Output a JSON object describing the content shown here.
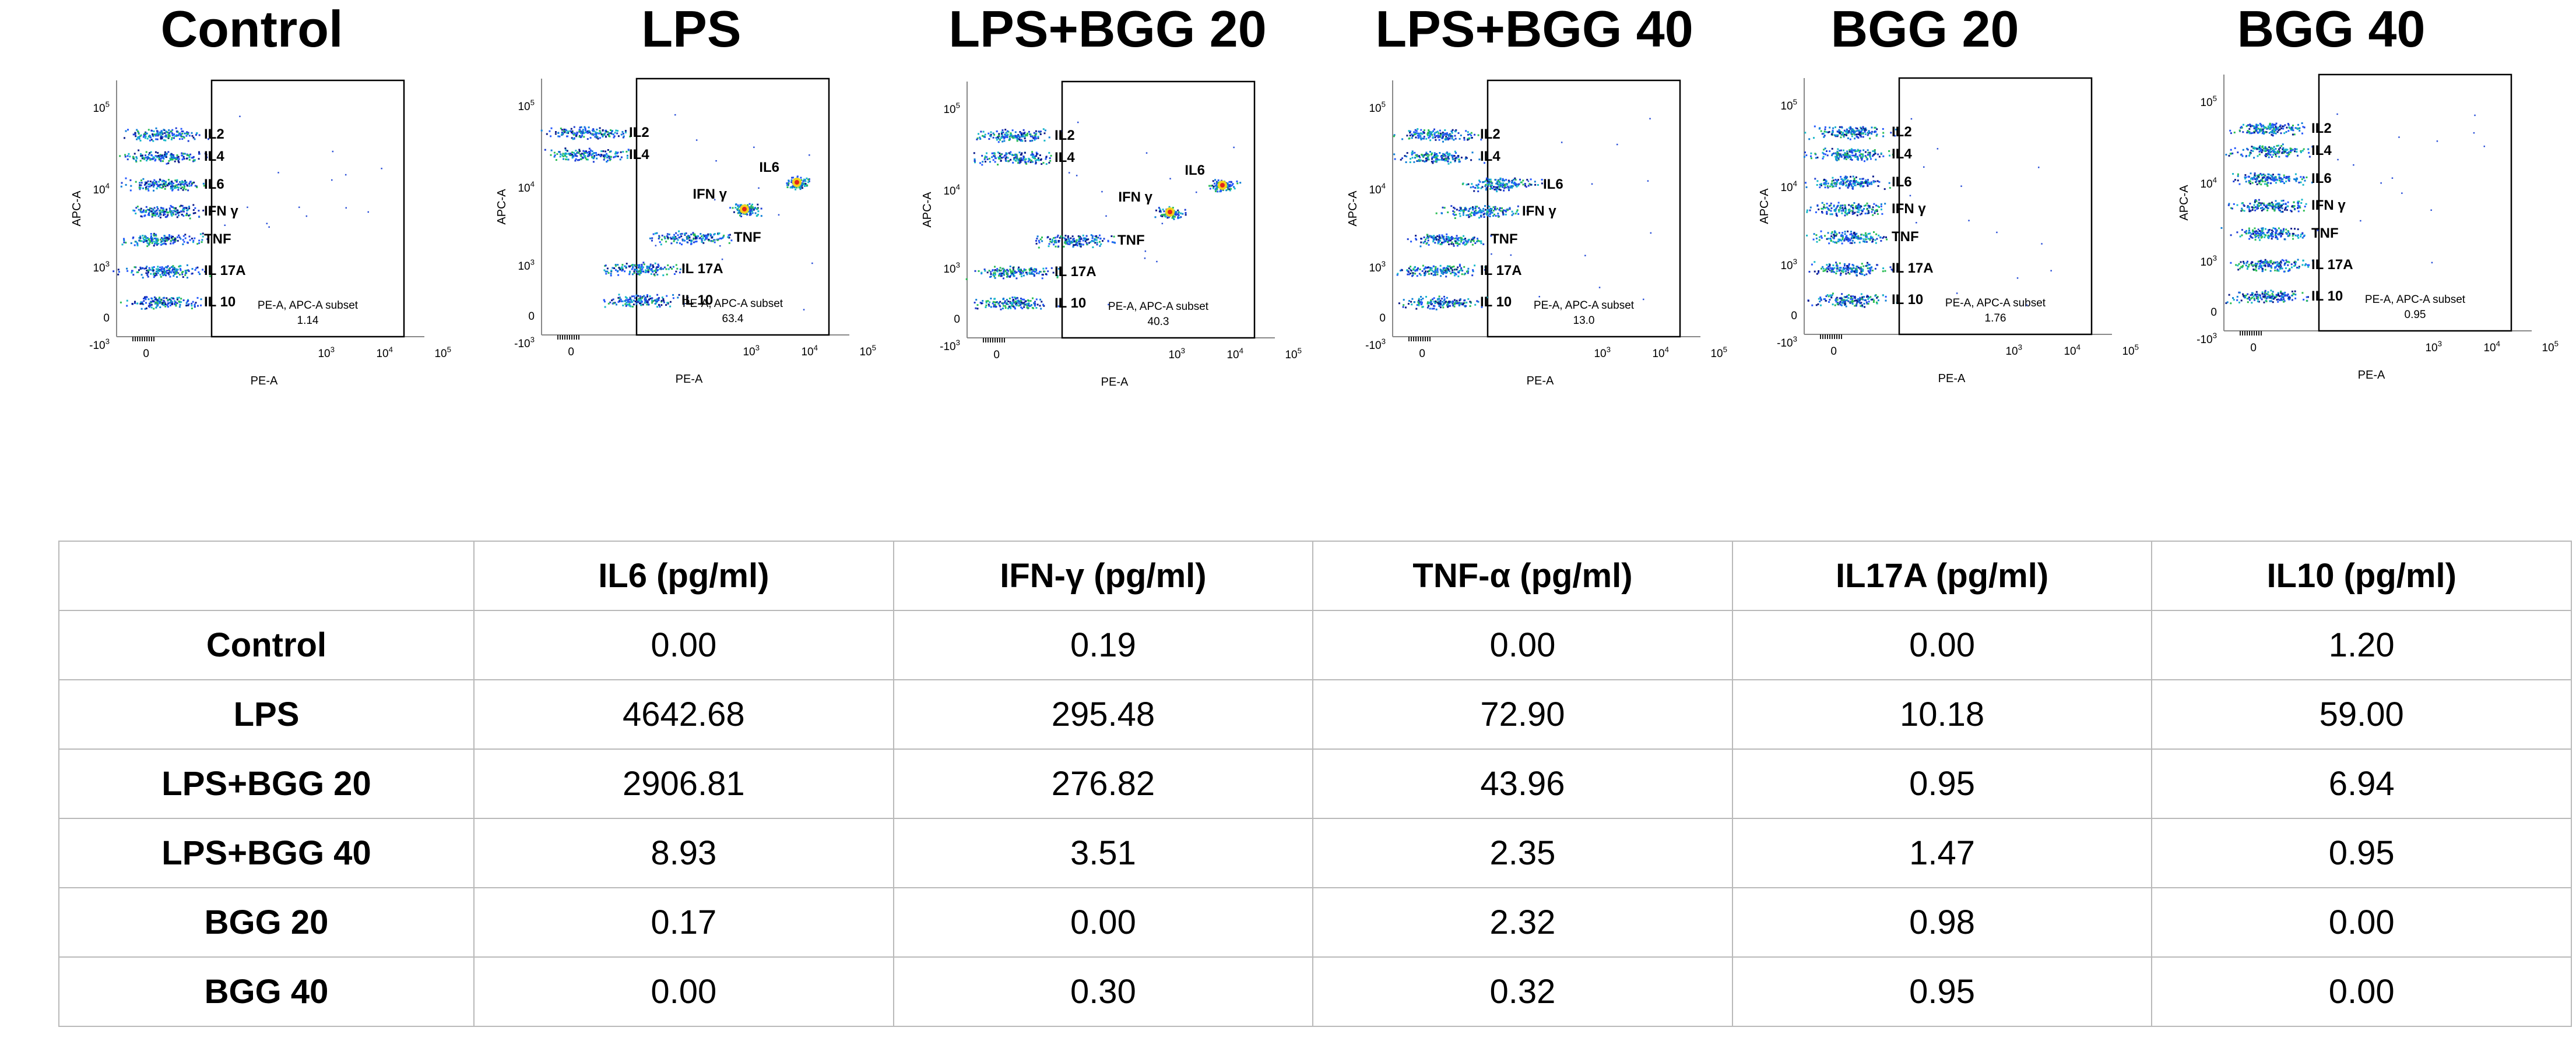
{
  "flow_panels": {
    "x_axis_label": "PE-A",
    "y_axis_label": "APC-A",
    "gate_caption": "PE-A, APC-A subset",
    "x_ticks": [
      "0",
      "10^3",
      "10^4",
      "10^5"
    ],
    "y_ticks": [
      "10^5",
      "10^4",
      "10^3",
      "0",
      "-10^3"
    ],
    "panels": [
      {
        "title": "Control",
        "gate_value": "1.14",
        "labels": [
          "IL2",
          "IL4",
          "IL6",
          "IFN γ",
          "TNF",
          "IL 17A",
          "IL 10"
        ],
        "shift": [
          0,
          0,
          0,
          0,
          0,
          0,
          0
        ]
      },
      {
        "title": "LPS",
        "gate_value": "63.4",
        "labels": [
          "IL2",
          "IL4",
          "IL6",
          "IFN γ",
          "TNF",
          "IL 17A",
          "IL 10"
        ],
        "shift": [
          0,
          0,
          1,
          0.75,
          0.5,
          0.25,
          0.25
        ]
      },
      {
        "title": "LPS+BGG 20",
        "gate_value": "40.3",
        "labels": [
          "IL2",
          "IL4",
          "IL6",
          "IFN γ",
          "TNF",
          "IL 17A",
          "IL 10"
        ],
        "shift": [
          0,
          0,
          1,
          0.75,
          0.3,
          0,
          0
        ]
      },
      {
        "title": "LPS+BGG 40",
        "gate_value": "13.0",
        "labels": [
          "IL2",
          "IL4",
          "IL6",
          "IFN γ",
          "TNF",
          "IL 17A",
          "IL 10"
        ],
        "shift": [
          0,
          0,
          0.3,
          0.2,
          0.05,
          0,
          0
        ]
      },
      {
        "title": "BGG 20",
        "gate_value": "1.76",
        "labels": [
          "IL2",
          "IL4",
          "IL6",
          "IFN γ",
          "TNF",
          "IL 17A",
          "IL 10"
        ],
        "shift": [
          0,
          0,
          0,
          0,
          0,
          0,
          0
        ]
      },
      {
        "title": "BGG 40",
        "gate_value": "0.95",
        "labels": [
          "IL2",
          "IL4",
          "IL6",
          "IFN γ",
          "TNF",
          "IL 17A",
          "IL 10"
        ],
        "shift": [
          0,
          0,
          0,
          0,
          0,
          0,
          0
        ]
      }
    ]
  },
  "chart_data": {
    "type": "table",
    "title": "",
    "columns": [
      "",
      "IL6 (pg/ml)",
      "IFN-γ (pg/ml)",
      "TNF-α (pg/ml)",
      "IL17A (pg/ml)",
      "IL10  (pg/ml)"
    ],
    "rows": [
      {
        "label": "Control",
        "values": [
          "0.00",
          "0.19",
          "0.00",
          "0.00",
          "1.20"
        ]
      },
      {
        "label": "LPS",
        "values": [
          "4642.68",
          "295.48",
          "72.90",
          "10.18",
          "59.00"
        ]
      },
      {
        "label": "LPS+BGG 20",
        "values": [
          "2906.81",
          "276.82",
          "43.96",
          "0.95",
          "6.94"
        ]
      },
      {
        "label": "LPS+BGG 40",
        "values": [
          "8.93",
          "3.51",
          "2.35",
          "1.47",
          "0.95"
        ]
      },
      {
        "label": "BGG 20",
        "values": [
          "0.17",
          "0.00",
          "2.32",
          "0.98",
          "0.00"
        ]
      },
      {
        "label": "BGG 40",
        "values": [
          "0.00",
          "0.30",
          "0.32",
          "0.95",
          "0.00"
        ]
      }
    ]
  }
}
